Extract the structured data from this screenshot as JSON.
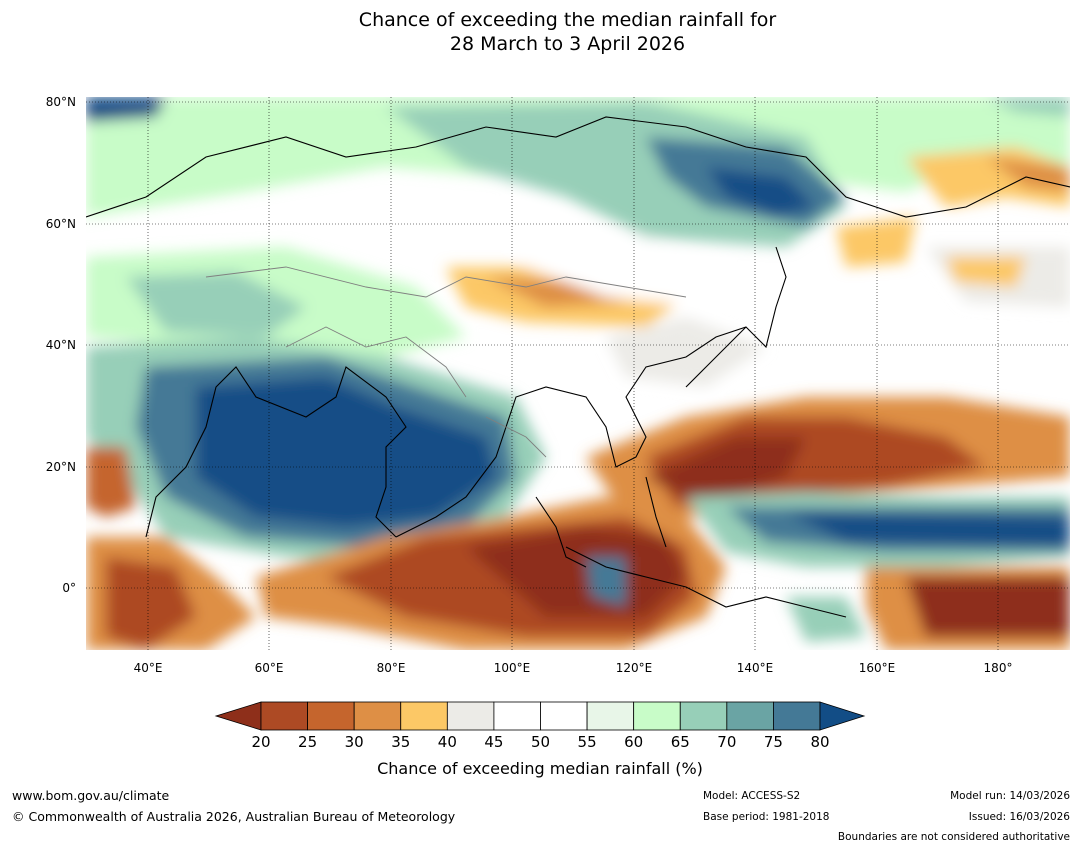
{
  "title": {
    "line1": "Chance of exceeding the median rainfall for",
    "line2": "28 March to 3 April 2026"
  },
  "map": {
    "lat_labels": [
      "80°N",
      "60°N",
      "40°N",
      "20°N",
      "0°"
    ],
    "lon_labels": [
      "40°E",
      "60°E",
      "80°E",
      "100°E",
      "120°E",
      "140°E",
      "160°E",
      "180°"
    ]
  },
  "colorbar": {
    "ticks": [
      "20",
      "25",
      "30",
      "35",
      "40",
      "45",
      "50",
      "55",
      "60",
      "65",
      "70",
      "75",
      "80"
    ],
    "colors": [
      "#8e2f1a",
      "#ad4a24",
      "#c5652d",
      "#de8f45",
      "#fcc866",
      "#ecebe7",
      "#ffffff",
      "#ffffff",
      "#e8f6e8",
      "#c8fcc8",
      "#97cfb8",
      "#6aa4a4",
      "#447996",
      "#124d86"
    ],
    "label": "Chance of exceeding median rainfall (%)"
  },
  "footer": {
    "website": "www.bom.gov.au/climate",
    "copyright": "© Commonwealth of Australia 2026, Australian Bureau of Meteorology",
    "model": "Model: ACCESS-S2",
    "base_period": "Base period: 1981-2018",
    "model_run": "Model run: 14/03/2026",
    "issued": "Issued: 16/03/2026",
    "disclaimer": "Boundaries are not considered authoritative"
  }
}
